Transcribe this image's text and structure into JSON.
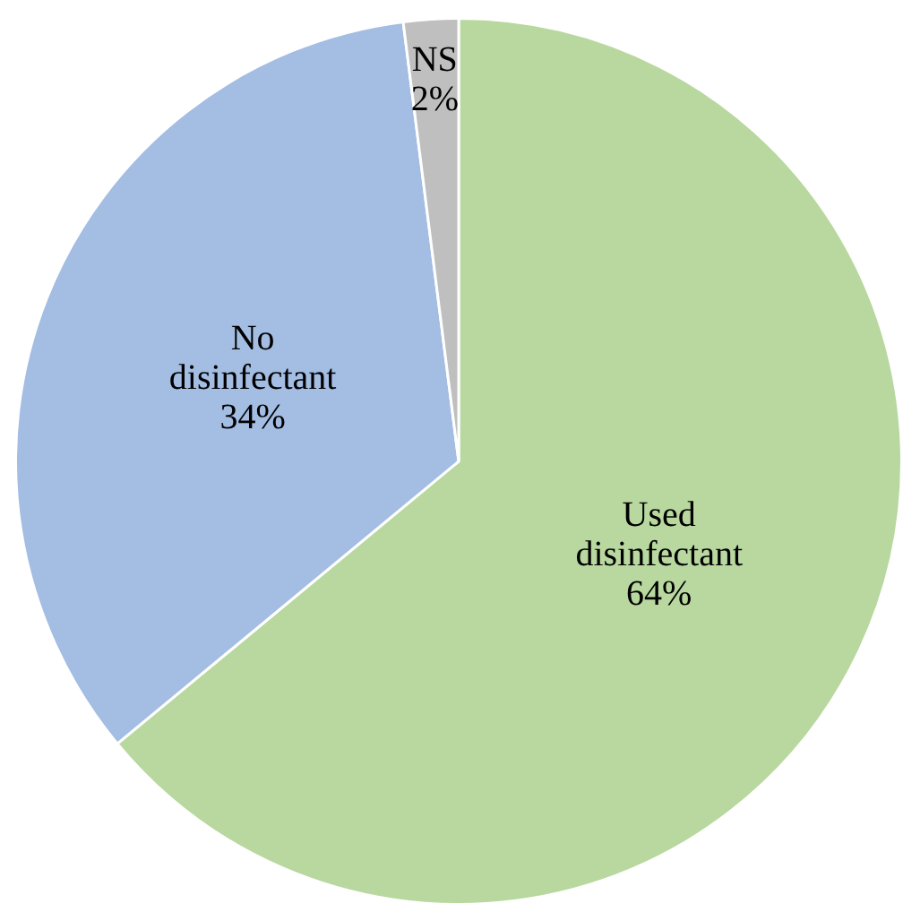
{
  "chart_data": {
    "type": "pie",
    "categories": [
      "Used disinfectant",
      "No disinfectant",
      "NS"
    ],
    "values": [
      64,
      34,
      2
    ],
    "colors": [
      "#b8d89f",
      "#a3bde3",
      "#bfbfbf"
    ],
    "value_labels": [
      "64%",
      "34%",
      "2%"
    ],
    "legend": false
  }
}
